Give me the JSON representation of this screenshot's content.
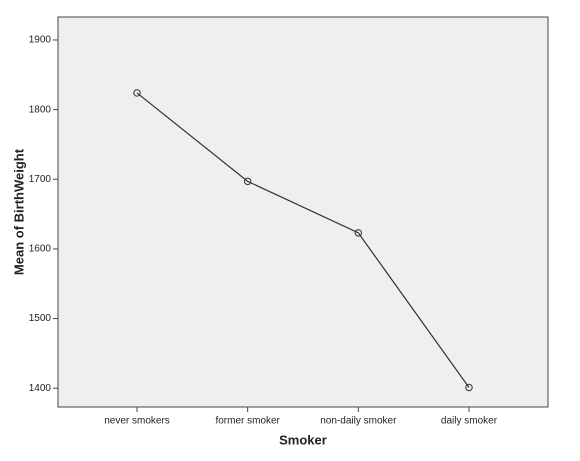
{
  "chart_data": {
    "type": "line",
    "x_label": "Smoker",
    "y_label": "Mean of BirthWeight",
    "categories": [
      "never smokers",
      "former smoker",
      "non-daily smoker",
      "daily smoker"
    ],
    "values": [
      1824,
      1697,
      1623,
      1401
    ],
    "color": "#333333",
    "ylim": [
      1373,
      1933
    ],
    "yticks": [
      1400,
      1500,
      1600,
      1700,
      1800,
      1900
    ],
    "grid": false
  }
}
